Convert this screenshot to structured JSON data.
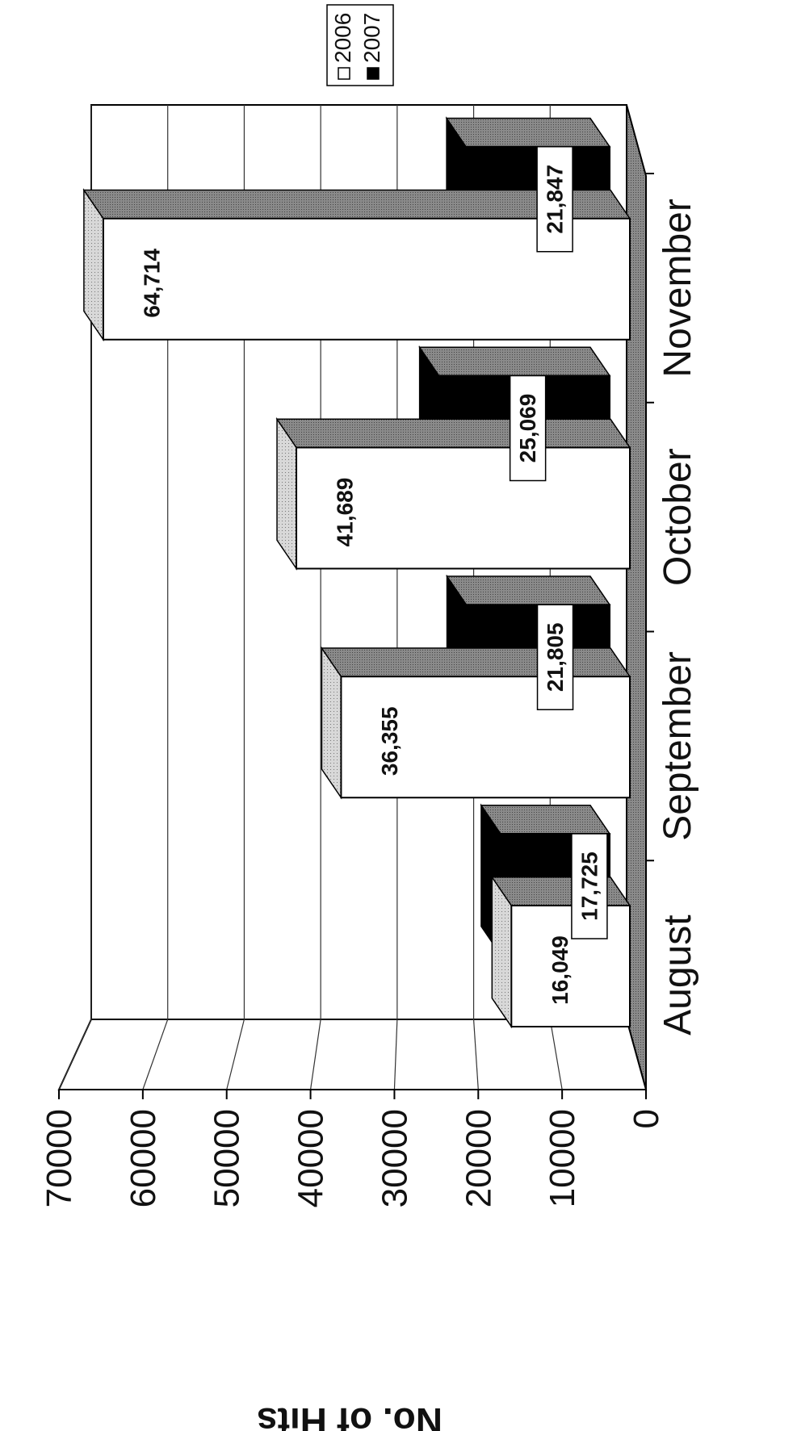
{
  "chart_data": {
    "type": "bar",
    "three_d": true,
    "orientation": "rotated-90",
    "categories": [
      "August",
      "September",
      "October",
      "November"
    ],
    "series": [
      {
        "name": "2006",
        "values": [
          16049,
          36355,
          41689,
          64714
        ],
        "labels": [
          "16,049",
          "36,355",
          "41,689",
          "64,714"
        ],
        "color": "#ffffff"
      },
      {
        "name": "2007",
        "values": [
          17725,
          21805,
          25069,
          21847
        ],
        "labels": [
          "17,725",
          "21,805",
          "25,069",
          "21,847"
        ],
        "color": "#000000"
      }
    ],
    "ylabel": "No. of Hits",
    "ylim": [
      0,
      70000
    ],
    "yticks": [
      0,
      10000,
      20000,
      30000,
      40000,
      50000,
      60000,
      70000
    ],
    "ytick_labels": [
      "0",
      "10000",
      "20000",
      "30000",
      "40000",
      "50000",
      "60000",
      "70000"
    ],
    "grid": true,
    "legend_position": "top-right"
  }
}
